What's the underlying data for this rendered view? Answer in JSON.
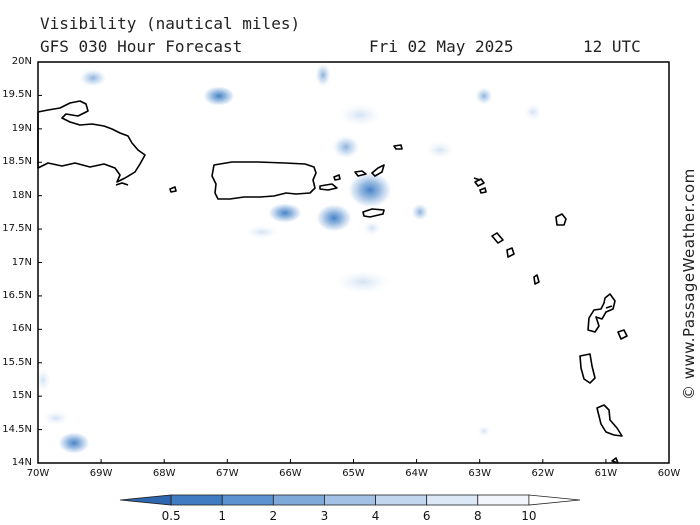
{
  "header": {
    "title": "Visibility (nautical miles)",
    "model": "GFS 030 Hour Forecast",
    "date": "Fri 02 May 2025",
    "time": "12 UTC"
  },
  "credit": "© www.PassageWeather.com",
  "map": {
    "lat_labels": [
      "20N",
      "19.5N",
      "19N",
      "18.5N",
      "18N",
      "17.5N",
      "17N",
      "16.5N",
      "16N",
      "15.5N",
      "15N",
      "14.5N",
      "14N"
    ],
    "lon_labels": [
      "70W",
      "69W",
      "68W",
      "67W",
      "66W",
      "65W",
      "64W",
      "63W",
      "62W",
      "61W",
      "60W"
    ],
    "lat_range": [
      14,
      20
    ],
    "lon_range": [
      -70,
      -60
    ],
    "colors": {
      "frame": "#000000",
      "land_outline": "#000000",
      "shade_strong": "#3a7cc4",
      "shade_mid": "#7fa9d9",
      "shade_light": "#c7daf0"
    }
  },
  "colorbar": {
    "labels": [
      "0.5",
      "1",
      "2",
      "3",
      "4",
      "6",
      "8",
      "10"
    ],
    "colors": [
      "#2e67b0",
      "#3f7cc2",
      "#5b92cf",
      "#7fa9d9",
      "#a3c1e4",
      "#c2d6ee",
      "#dde8f6",
      "#f2f6fc",
      "#ffffff"
    ]
  }
}
